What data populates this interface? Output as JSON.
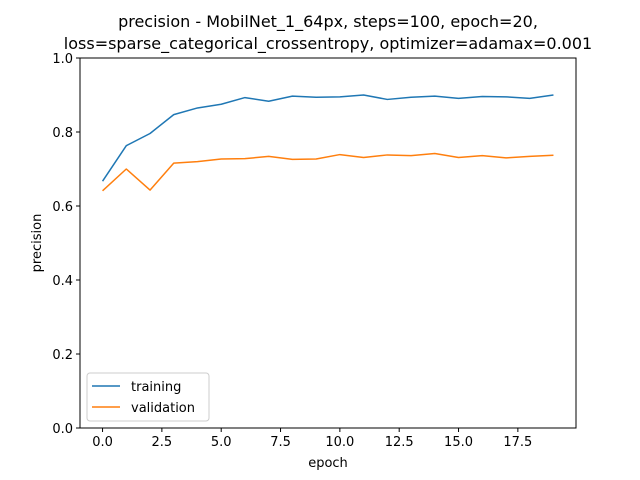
{
  "chart_data": {
    "type": "line",
    "title_line1": "precision - MobilNet_1_64px, steps=100, epoch=20,",
    "title_line2": "loss=sparse_categorical_crossentropy, optimizer=adamax=0.001",
    "xlabel": "epoch",
    "ylabel": "precision",
    "xlim": [
      -0.95,
      19.95
    ],
    "ylim": [
      0.0,
      1.0
    ],
    "xticks": [
      0.0,
      2.5,
      5.0,
      7.5,
      10.0,
      12.5,
      15.0,
      17.5
    ],
    "xtick_labels": [
      "0.0",
      "2.5",
      "5.0",
      "7.5",
      "10.0",
      "12.5",
      "15.0",
      "17.5"
    ],
    "yticks": [
      0.0,
      0.2,
      0.4,
      0.6,
      0.8,
      1.0
    ],
    "ytick_labels": [
      "0.0",
      "0.2",
      "0.4",
      "0.6",
      "0.8",
      "1.0"
    ],
    "grid": false,
    "legend_position": "lower-left",
    "x": [
      0,
      1,
      2,
      3,
      4,
      5,
      6,
      7,
      8,
      9,
      10,
      11,
      12,
      13,
      14,
      15,
      16,
      17,
      18,
      19
    ],
    "series": [
      {
        "name": "training",
        "color": "#1f77b4",
        "values": [
          0.667,
          0.763,
          0.796,
          0.847,
          0.865,
          0.875,
          0.893,
          0.883,
          0.897,
          0.894,
          0.895,
          0.9,
          0.888,
          0.894,
          0.897,
          0.891,
          0.896,
          0.895,
          0.891,
          0.9
        ]
      },
      {
        "name": "validation",
        "color": "#ff7f0e",
        "values": [
          0.641,
          0.7,
          0.643,
          0.716,
          0.72,
          0.727,
          0.728,
          0.734,
          0.726,
          0.727,
          0.739,
          0.731,
          0.738,
          0.736,
          0.742,
          0.731,
          0.736,
          0.73,
          0.734,
          0.737
        ]
      }
    ]
  }
}
